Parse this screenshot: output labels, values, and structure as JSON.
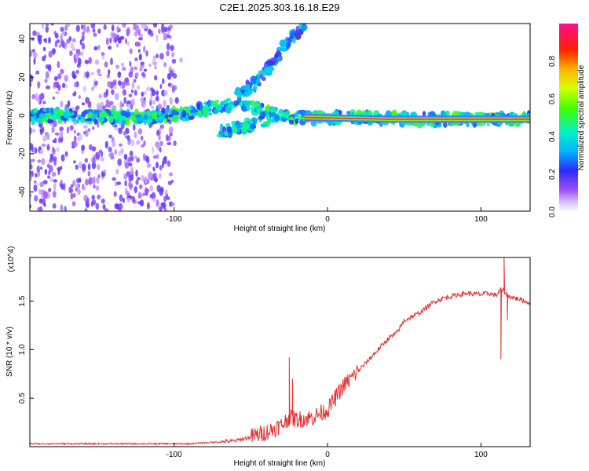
{
  "title": "C2E1.2025.303.16.18.E29",
  "colors": {
    "spec_low": "#7b2cff",
    "spec_mid": "#00c8ff",
    "spec_high": "#ff0000",
    "snr_line": "#e83030",
    "axis": "#000000"
  },
  "colorbar": {
    "label": "Normalized spectral amplitude",
    "range": [
      0,
      1
    ],
    "ticks": [
      "0.0",
      "0.2",
      "0.4",
      "0.6",
      "0.8"
    ],
    "tick_values": [
      0,
      0.2,
      0.4,
      0.6,
      0.8
    ],
    "palette": "rainbow"
  },
  "chart_data": [
    {
      "type": "heatmap",
      "title": "C2E1.2025.303.16.18.E29",
      "xlabel": "Height of straight line (km)",
      "ylabel": "Frequency (Hz)",
      "xlim": [
        -194,
        132
      ],
      "ylim": [
        -50,
        48
      ],
      "xticks": [
        -100,
        0,
        100
      ],
      "xtick_labels": [
        "-100",
        "0",
        "100"
      ],
      "yticks": [
        -40,
        -20,
        0,
        20,
        40
      ],
      "ytick_labels": [
        "-40",
        "-20",
        "0",
        "20",
        "40"
      ],
      "grid": false,
      "features": [
        {
          "name": "main band",
          "points": [
            [
              -194,
              0
            ],
            [
              -130,
              -1
            ],
            [
              -100,
              0
            ],
            [
              -75,
              4
            ],
            [
              -60,
              6
            ],
            [
              -45,
              3
            ],
            [
              -30,
              0
            ],
            [
              -15,
              -1
            ],
            [
              0,
              -1
            ],
            [
              60,
              -2
            ],
            [
              132,
              -2
            ]
          ],
          "amplitude": 0.35
        },
        {
          "name": "strong band",
          "points": [
            [
              -15,
              -1
            ],
            [
              40,
              -2
            ],
            [
              80,
              -2
            ],
            [
              132,
              -2
            ]
          ],
          "amplitude": 1.0
        },
        {
          "name": "upper branch",
          "points": [
            [
              -60,
              10
            ],
            [
              -45,
              18
            ],
            [
              -35,
              28
            ],
            [
              -25,
              40
            ],
            [
              -15,
              47
            ]
          ],
          "amplitude": 0.25
        },
        {
          "name": "lower branch",
          "points": [
            [
              -70,
              -8
            ],
            [
              -55,
              -6
            ],
            [
              -45,
              -3
            ],
            [
              -35,
              -1
            ]
          ],
          "amplitude": 0.3
        }
      ],
      "noise_region_km": [
        -194,
        -100
      ],
      "noise_amplitude": 0.12
    },
    {
      "type": "line",
      "xlabel": "Height of straight line (km)",
      "ylabel": "SNR (10 * v/v)",
      "scale_label": "(x10^4)",
      "xlim": [
        -194,
        132
      ],
      "ylim": [
        0,
        1.95
      ],
      "xticks": [
        -100,
        0,
        100
      ],
      "xtick_labels": [
        "-100",
        "0",
        "100"
      ],
      "yticks": [
        0.5,
        1.0,
        1.5
      ],
      "ytick_labels": [
        "0.5",
        "1.0",
        "1.5"
      ],
      "grid": false,
      "series": [
        {
          "name": "SNR",
          "x": [
            -194,
            -170,
            -150,
            -130,
            -110,
            -90,
            -80,
            -70,
            -60,
            -50,
            -40,
            -30,
            -25,
            -20,
            -10,
            0,
            5,
            10,
            20,
            30,
            40,
            45,
            50,
            60,
            70,
            80,
            90,
            100,
            105,
            110,
            113,
            115,
            118,
            125,
            132
          ],
          "y": [
            0.03,
            0.03,
            0.03,
            0.03,
            0.03,
            0.03,
            0.04,
            0.05,
            0.06,
            0.1,
            0.15,
            0.22,
            0.3,
            0.28,
            0.3,
            0.38,
            0.5,
            0.62,
            0.78,
            0.95,
            1.12,
            1.17,
            1.3,
            1.38,
            1.5,
            1.55,
            1.58,
            1.57,
            1.58,
            1.56,
            1.62,
            1.6,
            1.55,
            1.52,
            1.48
          ]
        }
      ],
      "spikes": [
        {
          "x": -25,
          "y": 0.92
        },
        {
          "x": -23,
          "y": 0.7
        },
        {
          "x": 113,
          "y": 0.9
        },
        {
          "x": 115,
          "y": 1.95
        },
        {
          "x": 117,
          "y": 1.3
        }
      ]
    }
  ]
}
